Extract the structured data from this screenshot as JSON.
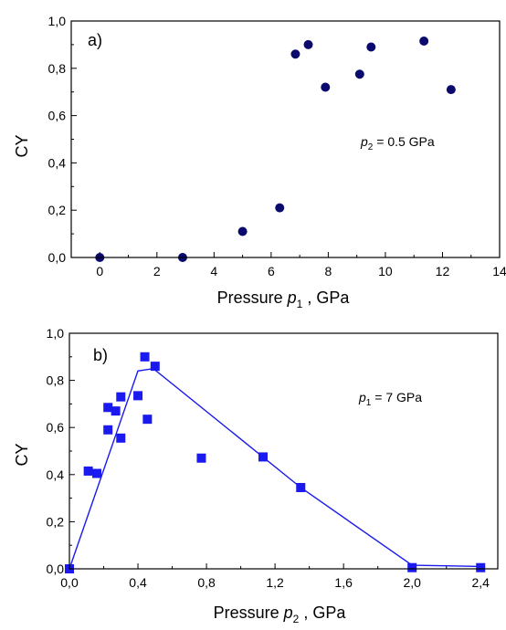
{
  "chart_data": [
    {
      "type": "scatter",
      "panel_label": "a)",
      "annotation": {
        "var": "p",
        "sub": "2",
        "rest": " = 0.5 GPa"
      },
      "ylabel": "CY",
      "xlabel": {
        "prefix": "Pressure ",
        "var": "p",
        "sub": "1",
        "suffix": " , GPa"
      },
      "xlim": [
        -1,
        14
      ],
      "ylim": [
        0,
        1.0
      ],
      "xticks": [
        0,
        2,
        4,
        6,
        8,
        10,
        12,
        14
      ],
      "xtick_labels": [
        "0",
        "2",
        "4",
        "6",
        "8",
        "10",
        "12",
        "14"
      ],
      "yticks": [
        0,
        0.2,
        0.4,
        0.6,
        0.8,
        1.0
      ],
      "ytick_labels": [
        "0,0",
        "0,2",
        "0,4",
        "0,6",
        "0,8",
        "1,0"
      ],
      "color": "#0a0a6e",
      "marker": "circle",
      "points": [
        {
          "x": 0.0,
          "y": 0.0
        },
        {
          "x": 2.9,
          "y": 0.0
        },
        {
          "x": 5.0,
          "y": 0.11
        },
        {
          "x": 6.3,
          "y": 0.21
        },
        {
          "x": 6.85,
          "y": 0.86
        },
        {
          "x": 7.3,
          "y": 0.9
        },
        {
          "x": 7.9,
          "y": 0.72
        },
        {
          "x": 9.1,
          "y": 0.775
        },
        {
          "x": 9.5,
          "y": 0.89
        },
        {
          "x": 11.35,
          "y": 0.915
        },
        {
          "x": 12.3,
          "y": 0.71
        }
      ]
    },
    {
      "type": "scatter",
      "panel_label": "b)",
      "annotation": {
        "var": "p",
        "sub": "1",
        "rest": " = 7 GPa"
      },
      "ylabel": "CY",
      "xlabel": {
        "prefix": "Pressure ",
        "var": "p",
        "sub": "2",
        "suffix": " , GPa"
      },
      "xlim": [
        0,
        2.5
      ],
      "ylim": [
        0,
        1.0
      ],
      "xticks": [
        0,
        0.4,
        0.8,
        1.2,
        1.6,
        2.0,
        2.4
      ],
      "xtick_labels": [
        "0,0",
        "0,4",
        "0,8",
        "1,2",
        "1,6",
        "2,0",
        "2,4"
      ],
      "yticks": [
        0,
        0.2,
        0.4,
        0.6,
        0.8,
        1.0
      ],
      "ytick_labels": [
        "0,0",
        "0,2",
        "0,4",
        "0,6",
        "0,8",
        "1,0"
      ],
      "color": "#1a1aee",
      "marker": "square",
      "points": [
        {
          "x": 0.0,
          "y": 0.0
        },
        {
          "x": 0.11,
          "y": 0.415
        },
        {
          "x": 0.16,
          "y": 0.405
        },
        {
          "x": 0.225,
          "y": 0.59
        },
        {
          "x": 0.225,
          "y": 0.685
        },
        {
          "x": 0.27,
          "y": 0.67
        },
        {
          "x": 0.3,
          "y": 0.73
        },
        {
          "x": 0.3,
          "y": 0.555
        },
        {
          "x": 0.4,
          "y": 0.735
        },
        {
          "x": 0.44,
          "y": 0.9
        },
        {
          "x": 0.455,
          "y": 0.635
        },
        {
          "x": 0.5,
          "y": 0.86
        },
        {
          "x": 0.77,
          "y": 0.47
        },
        {
          "x": 1.13,
          "y": 0.475
        },
        {
          "x": 1.35,
          "y": 0.345
        },
        {
          "x": 2.0,
          "y": 0.005
        },
        {
          "x": 2.4,
          "y": 0.005
        }
      ],
      "line": [
        {
          "x": 0.0,
          "y": 0.0
        },
        {
          "x": 0.4,
          "y": 0.84
        },
        {
          "x": 0.49,
          "y": 0.85
        },
        {
          "x": 1.35,
          "y": 0.345
        },
        {
          "x": 2.0,
          "y": 0.015
        },
        {
          "x": 2.4,
          "y": 0.01
        }
      ]
    }
  ]
}
